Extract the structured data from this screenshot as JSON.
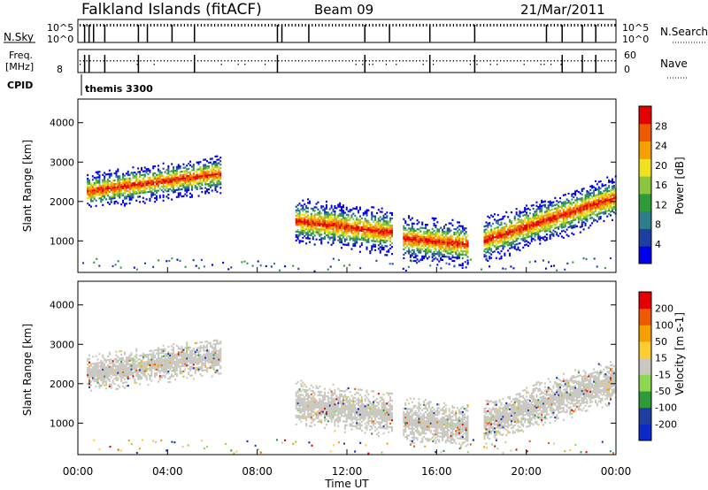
{
  "header": {
    "station": "Falkland Islands (fitACF)",
    "beam": "Beam 09",
    "date": "21/Mar/2011"
  },
  "strips": {
    "nsky_label": "N.Sky",
    "nsearch_label": "N.Search",
    "freq_label": "Freq.",
    "freq_unit": "[MHz]",
    "nave_label": "Nave",
    "cpid_label": "CPID",
    "cpid_value": "themis 3300",
    "nsky_ticks": [
      "10^5",
      "10^0"
    ],
    "nsearch_ticks": [
      "10^5",
      "10^0"
    ],
    "freq_ticks": [
      "8"
    ],
    "nave_ticks": [
      "60",
      "0"
    ]
  },
  "xaxis": {
    "label": "Time UT",
    "ticks": [
      "00:00",
      "04:00",
      "08:00",
      "12:00",
      "16:00",
      "20:00",
      "00:00"
    ]
  },
  "colors": {
    "power_scale": [
      "#0000e8",
      "#1e3fa0",
      "#2e7d8a",
      "#2e9a3a",
      "#8cc63f",
      "#f0e020",
      "#f5a000",
      "#ee5a00",
      "#e40000"
    ],
    "velocity_scale": [
      "#e40000",
      "#ee5a00",
      "#f5a000",
      "#ffcc33",
      "#c8c8c0",
      "#8cd650",
      "#2e9a3a",
      "#1e3fa0",
      "#0a2ac8"
    ]
  },
  "chart_data": [
    {
      "type": "heatmap",
      "title": "",
      "xlabel": "",
      "ylabel": "Slant Range [km]",
      "xlim": [
        0,
        24
      ],
      "ylim": [
        200,
        4600
      ],
      "yticks": [
        "1000",
        "2000",
        "3000",
        "4000"
      ],
      "colorbar": {
        "label": "Power [dB]",
        "ticks": [
          "4",
          "8",
          "12",
          "16",
          "20",
          "24",
          "28"
        ]
      },
      "scatter_bands": [
        {
          "t_start": 0.4,
          "t_end": 6.4,
          "range_center_start": 2250,
          "range_center_end": 2700,
          "half_width": 350
        },
        {
          "t_start": 9.7,
          "t_end": 14.0,
          "range_center_start": 1500,
          "range_center_end": 1200,
          "half_width": 420
        },
        {
          "t_start": 14.5,
          "t_end": 17.4,
          "range_center_start": 1050,
          "range_center_end": 900,
          "half_width": 420
        },
        {
          "t_start": 18.1,
          "t_end": 24.0,
          "range_center_start": 1000,
          "range_center_end": 2100,
          "half_width": 420
        }
      ]
    },
    {
      "type": "heatmap",
      "title": "",
      "xlabel": "Time UT",
      "ylabel": "Slant Range [km]",
      "xlim": [
        0,
        24
      ],
      "ylim": [
        200,
        4600
      ],
      "yticks": [
        "1000",
        "2000",
        "3000",
        "4000"
      ],
      "colorbar": {
        "label": "Velocity [m s-1]",
        "ticks": [
          "200",
          "100",
          "50",
          "15",
          "-15",
          "-50",
          "-100",
          "-200"
        ]
      },
      "scatter_bands": [
        {
          "t_start": 0.4,
          "t_end": 6.4,
          "range_center_start": 2250,
          "range_center_end": 2700,
          "half_width": 350
        },
        {
          "t_start": 9.7,
          "t_end": 14.0,
          "range_center_start": 1500,
          "range_center_end": 1200,
          "half_width": 420
        },
        {
          "t_start": 14.5,
          "t_end": 17.4,
          "range_center_start": 1050,
          "range_center_end": 900,
          "half_width": 420
        },
        {
          "t_start": 18.1,
          "t_end": 24.0,
          "range_center_start": 1000,
          "range_center_end": 2100,
          "half_width": 420
        }
      ]
    }
  ]
}
